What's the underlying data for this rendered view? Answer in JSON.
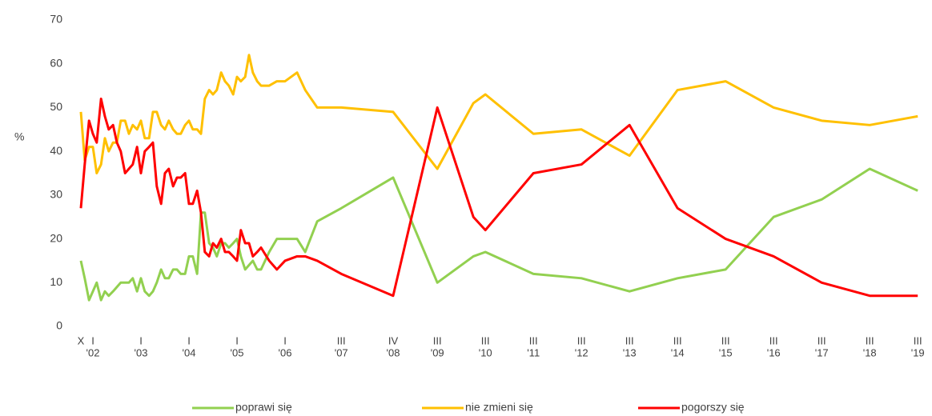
{
  "chart_data": {
    "type": "line",
    "y_label": "%",
    "x": [
      2001.75,
      2001.83,
      2001.92,
      2002.0,
      2002.08,
      2002.17,
      2002.25,
      2002.33,
      2002.42,
      2002.5,
      2002.58,
      2002.67,
      2002.75,
      2002.83,
      2002.92,
      2003.0,
      2003.08,
      2003.17,
      2003.25,
      2003.33,
      2003.42,
      2003.5,
      2003.58,
      2003.67,
      2003.75,
      2003.83,
      2003.92,
      2004.0,
      2004.08,
      2004.17,
      2004.25,
      2004.33,
      2004.42,
      2004.5,
      2004.58,
      2004.67,
      2004.75,
      2004.83,
      2004.92,
      2005.0,
      2005.08,
      2005.17,
      2005.25,
      2005.33,
      2005.42,
      2005.5,
      2005.67,
      2005.83,
      2006.0,
      2006.25,
      2006.42,
      2006.67,
      2007.17,
      2008.25,
      2009.17,
      2009.92,
      2010.17,
      2011.17,
      2012.17,
      2013.17,
      2014.17,
      2015.17,
      2016.17,
      2017.17,
      2018.17,
      2019.17
    ],
    "series": [
      {
        "name": "poprawi się",
        "color": "#92d050",
        "values": [
          15,
          11,
          6,
          8,
          10,
          6,
          8,
          7,
          8,
          9,
          10,
          10,
          10,
          11,
          8,
          11,
          8,
          7,
          8,
          10,
          13,
          11,
          11,
          13,
          13,
          12,
          12,
          16,
          16,
          12,
          26,
          26,
          19,
          18,
          16,
          19,
          19,
          18,
          19,
          20,
          16,
          13,
          14,
          15,
          13,
          13,
          17,
          20,
          20,
          20,
          17,
          24,
          27,
          34,
          10,
          16,
          17,
          12,
          11,
          8,
          11,
          13,
          25,
          29,
          36,
          31
        ]
      },
      {
        "name": "nie zmieni się",
        "color": "#ffc000",
        "values": [
          49,
          38,
          41,
          41,
          35,
          37,
          43,
          40,
          42,
          42,
          47,
          47,
          44,
          46,
          45,
          47,
          43,
          43,
          49,
          49,
          46,
          45,
          47,
          45,
          44,
          44,
          46,
          47,
          45,
          45,
          44,
          52,
          54,
          53,
          54,
          58,
          56,
          55,
          53,
          57,
          56,
          57,
          62,
          58,
          56,
          55,
          55,
          56,
          56,
          58,
          54,
          50,
          50,
          49,
          36,
          51,
          53,
          44,
          45,
          39,
          54,
          56,
          50,
          47,
          46,
          48
        ]
      },
      {
        "name": "pogorszy się",
        "color": "#ff0000",
        "values": [
          27,
          37,
          47,
          44,
          42,
          52,
          48,
          45,
          46,
          42,
          40,
          35,
          36,
          37,
          41,
          35,
          40,
          41,
          42,
          32,
          28,
          35,
          36,
          32,
          34,
          34,
          35,
          28,
          28,
          31,
          26,
          17,
          16,
          19,
          18,
          20,
          17,
          17,
          16,
          15,
          22,
          19,
          19,
          16,
          17,
          18,
          15,
          13,
          15,
          16,
          16,
          15,
          12,
          7,
          50,
          25,
          22,
          35,
          37,
          46,
          27,
          20,
          16,
          10,
          7,
          7
        ]
      }
    ],
    "xlim": [
      2001.75,
      2019.25
    ],
    "xticks": [
      {
        "value": 2001.75,
        "label": [
          "X"
        ]
      },
      {
        "value": 2002.0,
        "label": [
          "I",
          "'02"
        ]
      },
      {
        "value": 2003.0,
        "label": [
          "I",
          "'03"
        ]
      },
      {
        "value": 2004.0,
        "label": [
          "I",
          "'04"
        ]
      },
      {
        "value": 2005.0,
        "label": [
          "I",
          "'05"
        ]
      },
      {
        "value": 2006.0,
        "label": [
          "I",
          "'06"
        ]
      },
      {
        "value": 2007.17,
        "label": [
          "III",
          "'07"
        ]
      },
      {
        "value": 2008.25,
        "label": [
          "IV",
          "'08"
        ]
      },
      {
        "value": 2009.17,
        "label": [
          "III",
          "'09"
        ]
      },
      {
        "value": 2010.17,
        "label": [
          "III",
          "'10"
        ]
      },
      {
        "value": 2011.17,
        "label": [
          "III",
          "'11"
        ]
      },
      {
        "value": 2012.17,
        "label": [
          "III",
          "'12"
        ]
      },
      {
        "value": 2013.17,
        "label": [
          "III",
          "'13"
        ]
      },
      {
        "value": 2014.17,
        "label": [
          "III",
          "'14"
        ]
      },
      {
        "value": 2015.17,
        "label": [
          "III",
          "'15"
        ]
      },
      {
        "value": 2016.17,
        "label": [
          "III",
          "'16"
        ]
      },
      {
        "value": 2017.17,
        "label": [
          "III",
          "'17"
        ]
      },
      {
        "value": 2018.17,
        "label": [
          "III",
          "'18"
        ]
      },
      {
        "value": 2019.17,
        "label": [
          "III",
          "'19"
        ]
      }
    ],
    "ylim": [
      0,
      70
    ],
    "yticks": [
      0,
      10,
      20,
      30,
      40,
      50,
      60,
      70
    ],
    "grid": false,
    "legend": "bottom"
  }
}
